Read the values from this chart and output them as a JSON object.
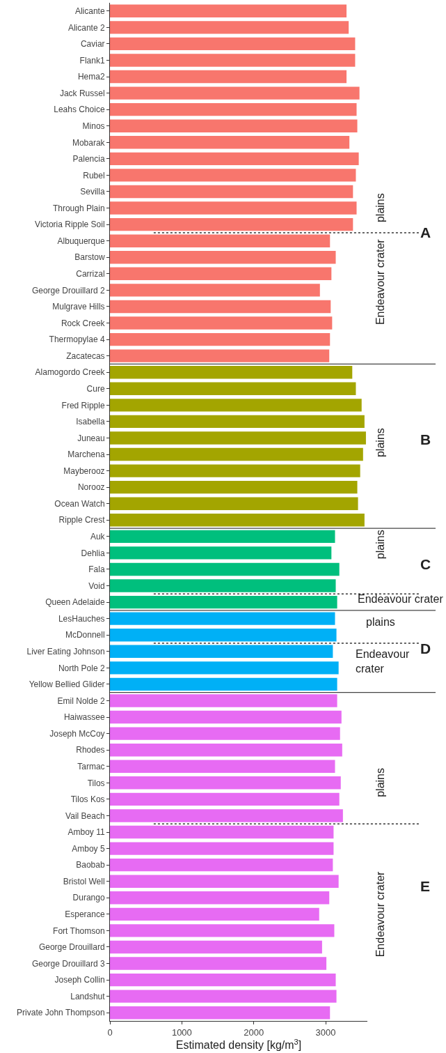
{
  "chart_data": {
    "type": "bar",
    "orientation": "horizontal",
    "xlabel": "Estimated density [kg/m$^{3}$]",
    "categories": [
      "Alicante",
      "Alicante 2",
      "Caviar",
      "Flank1",
      "Hema2",
      "Jack Russel",
      "Leahs Choice",
      "Minos",
      "Mobarak",
      "Palencia",
      "Rubel",
      "Sevilla",
      "Through Plain",
      "Victoria Ripple Soil",
      "Albuquerque",
      "Barstow",
      "Carrizal",
      "George Drouillard 2",
      "Mulgrave Hills",
      "Rock Creek",
      "Thermopylae 4",
      "Zacatecas",
      "Alamogordo Creek",
      "Cure",
      "Fred Ripple",
      "Isabella",
      "Juneau",
      "Marchena",
      "Mayberooz",
      "Norooz",
      "Ocean Watch",
      "Ripple Crest",
      "Auk",
      "Dehlia",
      "Fala",
      "Void",
      "Queen Adelaide",
      "LesHauches",
      "McDonnell",
      "Liver Eating Johnson",
      "North Pole 2",
      "Yellow Bellied Glider",
      "Emil Nolde 2",
      "Haiwassee",
      "Joseph McCoy",
      "Rhodes",
      "Tarmac",
      "Tilos",
      "Tilos Kos",
      "Vail Beach",
      "Amboy 11",
      "Amboy 5",
      "Baobab",
      "Bristol Well",
      "Durango",
      "Esperance",
      "Fort Thomson",
      "George Drouillard",
      "George Drouillard 3",
      "Joseph Collin",
      "Landshut",
      "Private John Thompson"
    ],
    "values": [
      3290,
      3320,
      3410,
      3410,
      3290,
      3470,
      3430,
      3440,
      3330,
      3460,
      3420,
      3380,
      3430,
      3380,
      3060,
      3140,
      3080,
      2920,
      3070,
      3090,
      3060,
      3050,
      3370,
      3420,
      3500,
      3540,
      3560,
      3520,
      3480,
      3440,
      3450,
      3540,
      3130,
      3080,
      3190,
      3140,
      3160,
      3130,
      3150,
      3100,
      3180,
      3160,
      3160,
      3220,
      3200,
      3230,
      3130,
      3210,
      3190,
      3240,
      3110,
      3110,
      3100,
      3180,
      3050,
      2910,
      3120,
      2950,
      3010,
      3140,
      3150,
      3060
    ],
    "colors": [
      "#f8766d",
      "#f8766d",
      "#f8766d",
      "#f8766d",
      "#f8766d",
      "#f8766d",
      "#f8766d",
      "#f8766d",
      "#f8766d",
      "#f8766d",
      "#f8766d",
      "#f8766d",
      "#f8766d",
      "#f8766d",
      "#f8766d",
      "#f8766d",
      "#f8766d",
      "#f8766d",
      "#f8766d",
      "#f8766d",
      "#f8766d",
      "#f8766d",
      "#a3a500",
      "#a3a500",
      "#a3a500",
      "#a3a500",
      "#a3a500",
      "#a3a500",
      "#a3a500",
      "#a3a500",
      "#a3a500",
      "#a3a500",
      "#00bf7d",
      "#00bf7d",
      "#00bf7d",
      "#00bf7d",
      "#00bf7d",
      "#00b0f6",
      "#00b0f6",
      "#00b0f6",
      "#00b0f6",
      "#00b0f6",
      "#e76bf3",
      "#e76bf3",
      "#e76bf3",
      "#e76bf3",
      "#e76bf3",
      "#e76bf3",
      "#e76bf3",
      "#e76bf3",
      "#e76bf3",
      "#e76bf3",
      "#e76bf3",
      "#e76bf3",
      "#e76bf3",
      "#e76bf3",
      "#e76bf3",
      "#e76bf3",
      "#e76bf3",
      "#e76bf3",
      "#e76bf3",
      "#e76bf3"
    ],
    "xlim": [
      0,
      3580
    ],
    "xticks": [
      0,
      1000,
      2000,
      3000
    ],
    "ref_lines": [
      {
        "axis": "y",
        "value": "Victoria Ripple Soil",
        "line_style": "dotted",
        "color": "#333333"
      },
      {
        "axis": "y",
        "value": "Zacatecas",
        "line_style": "solid",
        "color": "#444444"
      },
      {
        "axis": "y",
        "value": "Ripple Crest",
        "line_style": "solid",
        "color": "#444444"
      },
      {
        "axis": "y",
        "value": "Void",
        "line_style": "dotted",
        "color": "#333333"
      },
      {
        "axis": "y",
        "value": "Queen Adelaide",
        "line_style": "solid",
        "color": "#444444"
      },
      {
        "axis": "y",
        "value": "McDonnell",
        "line_style": "dotted",
        "color": "#333333"
      },
      {
        "axis": "y",
        "value": "Yellow Bellied Glider",
        "line_style": "solid",
        "color": "#444444"
      },
      {
        "axis": "y",
        "value": "Vail Beach",
        "line_style": "dotted",
        "color": "#333333"
      }
    ],
    "annotations": [
      "plains",
      "Endeavour crater",
      "A",
      "plains",
      "B",
      "plains",
      "C",
      "Endeavour crater",
      "plains",
      "D",
      "Endeavour crater",
      "plains",
      "E",
      "Endeavour crater"
    ]
  }
}
